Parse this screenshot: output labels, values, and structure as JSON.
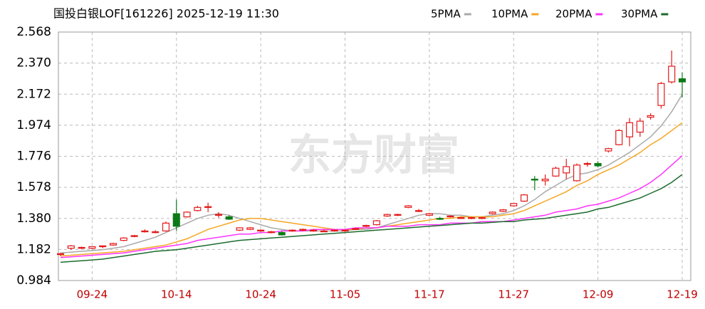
{
  "chart_data": {
    "type": "candlestick",
    "title": "国投白银LOF[161226] 2025-12-19 11:30",
    "watermark": "东方财富",
    "up_color": "#e41a1a",
    "down_color": "#0b7a16",
    "categories": [
      null,
      null,
      null,
      "09-24",
      null,
      null,
      null,
      null,
      null,
      null,
      null,
      "10-14",
      null,
      null,
      null,
      null,
      null,
      null,
      null,
      "10-24",
      null,
      null,
      null,
      null,
      null,
      null,
      null,
      "11-05",
      null,
      null,
      null,
      null,
      null,
      null,
      null,
      "11-17",
      null,
      null,
      null,
      null,
      null,
      null,
      null,
      "11-27",
      null,
      null,
      null,
      null,
      null,
      null,
      null,
      "12-09",
      null,
      null,
      null,
      null,
      null,
      null,
      null,
      "12-19"
    ],
    "open": [
      1.15,
      1.19,
      1.19,
      1.19,
      1.2,
      1.21,
      1.24,
      1.265,
      1.3,
      1.29,
      1.3,
      1.41,
      1.39,
      1.43,
      1.45,
      1.4,
      1.39,
      1.305,
      1.31,
      1.3,
      1.29,
      1.29,
      1.3,
      1.305,
      1.3,
      1.3,
      1.3,
      1.3,
      1.31,
      1.33,
      1.34,
      1.395,
      1.4,
      1.45,
      1.425,
      1.4,
      1.38,
      1.39,
      1.385,
      1.38,
      1.38,
      1.41,
      1.425,
      1.46,
      1.49,
      1.63,
      1.62,
      1.65,
      1.67,
      1.62,
      1.725,
      1.73,
      1.81,
      1.85,
      1.9,
      1.93,
      2.025,
      2.1,
      2.25,
      2.27
    ],
    "high": [
      1.16,
      1.21,
      1.2,
      1.2,
      1.205,
      1.225,
      1.26,
      1.275,
      1.31,
      1.305,
      1.36,
      1.5,
      1.425,
      1.46,
      1.48,
      1.42,
      1.4,
      1.32,
      1.325,
      1.31,
      1.3,
      1.3,
      1.31,
      1.315,
      1.31,
      1.31,
      1.31,
      1.31,
      1.32,
      1.34,
      1.37,
      1.41,
      1.41,
      1.465,
      1.44,
      1.415,
      1.39,
      1.4,
      1.39,
      1.39,
      1.39,
      1.425,
      1.44,
      1.48,
      1.535,
      1.65,
      1.66,
      1.71,
      1.76,
      1.73,
      1.74,
      1.745,
      1.83,
      1.95,
      2.02,
      2.02,
      2.05,
      2.25,
      2.45,
      2.31
    ],
    "low": [
      1.14,
      1.18,
      1.185,
      1.185,
      1.19,
      1.205,
      1.235,
      1.26,
      1.29,
      1.285,
      1.295,
      1.3,
      1.385,
      1.425,
      1.42,
      1.385,
      1.37,
      1.3,
      1.305,
      1.295,
      1.285,
      1.27,
      1.295,
      1.3,
      1.295,
      1.295,
      1.295,
      1.295,
      1.305,
      1.325,
      1.335,
      1.39,
      1.395,
      1.445,
      1.42,
      1.395,
      1.37,
      1.385,
      1.38,
      1.375,
      1.375,
      1.405,
      1.42,
      1.455,
      1.485,
      1.56,
      1.59,
      1.645,
      1.63,
      1.615,
      1.71,
      1.705,
      1.8,
      1.845,
      1.84,
      1.9,
      2.01,
      2.08,
      2.24,
      2.15
    ],
    "close": [
      1.155,
      1.205,
      1.195,
      1.2,
      1.205,
      1.22,
      1.255,
      1.27,
      1.3,
      1.295,
      1.35,
      1.33,
      1.42,
      1.45,
      1.455,
      1.405,
      1.375,
      1.32,
      1.32,
      1.305,
      1.295,
      1.275,
      1.305,
      1.31,
      1.305,
      1.3,
      1.305,
      1.305,
      1.315,
      1.335,
      1.365,
      1.405,
      1.405,
      1.46,
      1.43,
      1.41,
      1.375,
      1.395,
      1.385,
      1.385,
      1.385,
      1.42,
      1.435,
      1.475,
      1.53,
      1.625,
      1.63,
      1.7,
      1.71,
      1.72,
      1.73,
      1.715,
      1.825,
      1.94,
      1.99,
      2.0,
      2.035,
      2.24,
      2.35,
      2.25
    ],
    "series": [
      {
        "name": "5PMA",
        "color": "#aaaaaa",
        "values": [
          1.16,
          1.165,
          1.17,
          1.175,
          1.18,
          1.19,
          1.2,
          1.22,
          1.24,
          1.26,
          1.29,
          1.32,
          1.35,
          1.38,
          1.4,
          1.41,
          1.4,
          1.38,
          1.36,
          1.34,
          1.32,
          1.31,
          1.3,
          1.3,
          1.3,
          1.3,
          1.3,
          1.3,
          1.31,
          1.31,
          1.32,
          1.34,
          1.36,
          1.38,
          1.4,
          1.41,
          1.41,
          1.4,
          1.4,
          1.39,
          1.39,
          1.4,
          1.41,
          1.43,
          1.46,
          1.5,
          1.55,
          1.59,
          1.63,
          1.66,
          1.67,
          1.69,
          1.72,
          1.76,
          1.8,
          1.85,
          1.9,
          1.97,
          2.06,
          2.17
        ]
      },
      {
        "name": "10PMA",
        "color": "#f5a623",
        "values": [
          1.14,
          1.145,
          1.15,
          1.155,
          1.16,
          1.165,
          1.17,
          1.18,
          1.19,
          1.2,
          1.21,
          1.23,
          1.25,
          1.28,
          1.31,
          1.33,
          1.35,
          1.37,
          1.38,
          1.38,
          1.37,
          1.36,
          1.35,
          1.34,
          1.33,
          1.32,
          1.31,
          1.31,
          1.31,
          1.32,
          1.32,
          1.33,
          1.34,
          1.35,
          1.36,
          1.37,
          1.38,
          1.38,
          1.39,
          1.39,
          1.39,
          1.39,
          1.4,
          1.41,
          1.43,
          1.46,
          1.49,
          1.52,
          1.55,
          1.59,
          1.62,
          1.66,
          1.69,
          1.72,
          1.76,
          1.8,
          1.85,
          1.89,
          1.94,
          1.99
        ]
      },
      {
        "name": "20PMA",
        "color": "#ff33ff",
        "values": [
          1.13,
          1.135,
          1.14,
          1.145,
          1.15,
          1.155,
          1.16,
          1.17,
          1.18,
          1.19,
          1.2,
          1.21,
          1.22,
          1.24,
          1.25,
          1.26,
          1.27,
          1.28,
          1.28,
          1.29,
          1.29,
          1.3,
          1.3,
          1.3,
          1.31,
          1.31,
          1.31,
          1.31,
          1.32,
          1.32,
          1.32,
          1.33,
          1.33,
          1.33,
          1.34,
          1.34,
          1.34,
          1.35,
          1.35,
          1.35,
          1.36,
          1.36,
          1.36,
          1.37,
          1.38,
          1.39,
          1.4,
          1.42,
          1.43,
          1.44,
          1.46,
          1.47,
          1.49,
          1.51,
          1.54,
          1.57,
          1.61,
          1.66,
          1.72,
          1.78
        ]
      },
      {
        "name": "30PMA",
        "color": "#1c6b2e",
        "values": [
          1.1,
          1.105,
          1.11,
          1.115,
          1.12,
          1.13,
          1.14,
          1.15,
          1.16,
          1.17,
          1.175,
          1.18,
          1.19,
          1.2,
          1.21,
          1.22,
          1.23,
          1.24,
          1.245,
          1.25,
          1.255,
          1.26,
          1.265,
          1.27,
          1.275,
          1.28,
          1.285,
          1.29,
          1.295,
          1.3,
          1.305,
          1.31,
          1.315,
          1.32,
          1.325,
          1.33,
          1.335,
          1.34,
          1.345,
          1.35,
          1.35,
          1.355,
          1.36,
          1.36,
          1.37,
          1.375,
          1.38,
          1.39,
          1.4,
          1.41,
          1.42,
          1.44,
          1.45,
          1.47,
          1.49,
          1.51,
          1.54,
          1.57,
          1.61,
          1.66
        ]
      }
    ],
    "ylim": [
      0.984,
      2.568
    ],
    "yticks": [
      0.984,
      1.182,
      {
        "value": 1.38,
        "label": "1.380"
      },
      1.578,
      1.776,
      1.974,
      2.172,
      {
        "value": 2.37,
        "label": "2.370"
      },
      2.568
    ],
    "grid": true
  }
}
